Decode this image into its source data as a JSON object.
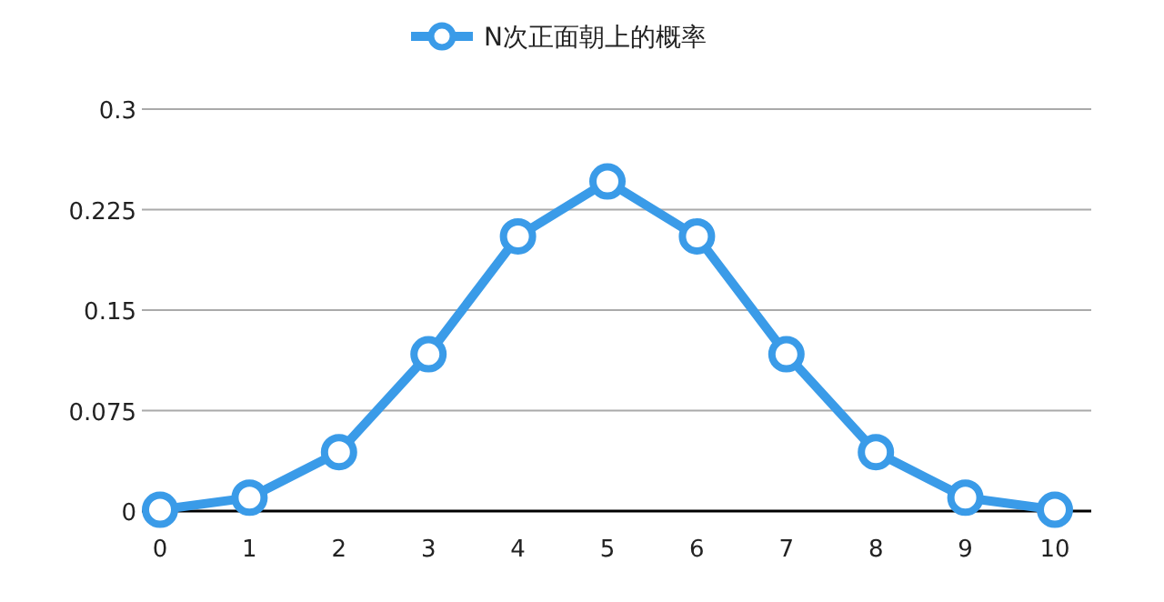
{
  "chart_data": {
    "type": "line",
    "categories": [
      "0",
      "1",
      "2",
      "3",
      "4",
      "5",
      "6",
      "7",
      "8",
      "9",
      "10"
    ],
    "series": [
      {
        "name": "N次正面朝上的概率",
        "color": "#3a9be8",
        "values": [
          0.001,
          0.01,
          0.044,
          0.117,
          0.205,
          0.246,
          0.205,
          0.117,
          0.044,
          0.01,
          0.001
        ]
      }
    ],
    "ylim": [
      0,
      0.3
    ],
    "yticks": [
      0,
      0.075,
      0.15,
      0.225,
      0.3
    ],
    "grid": "y",
    "legend": "top",
    "marker": "circle",
    "line_style": "solid"
  }
}
